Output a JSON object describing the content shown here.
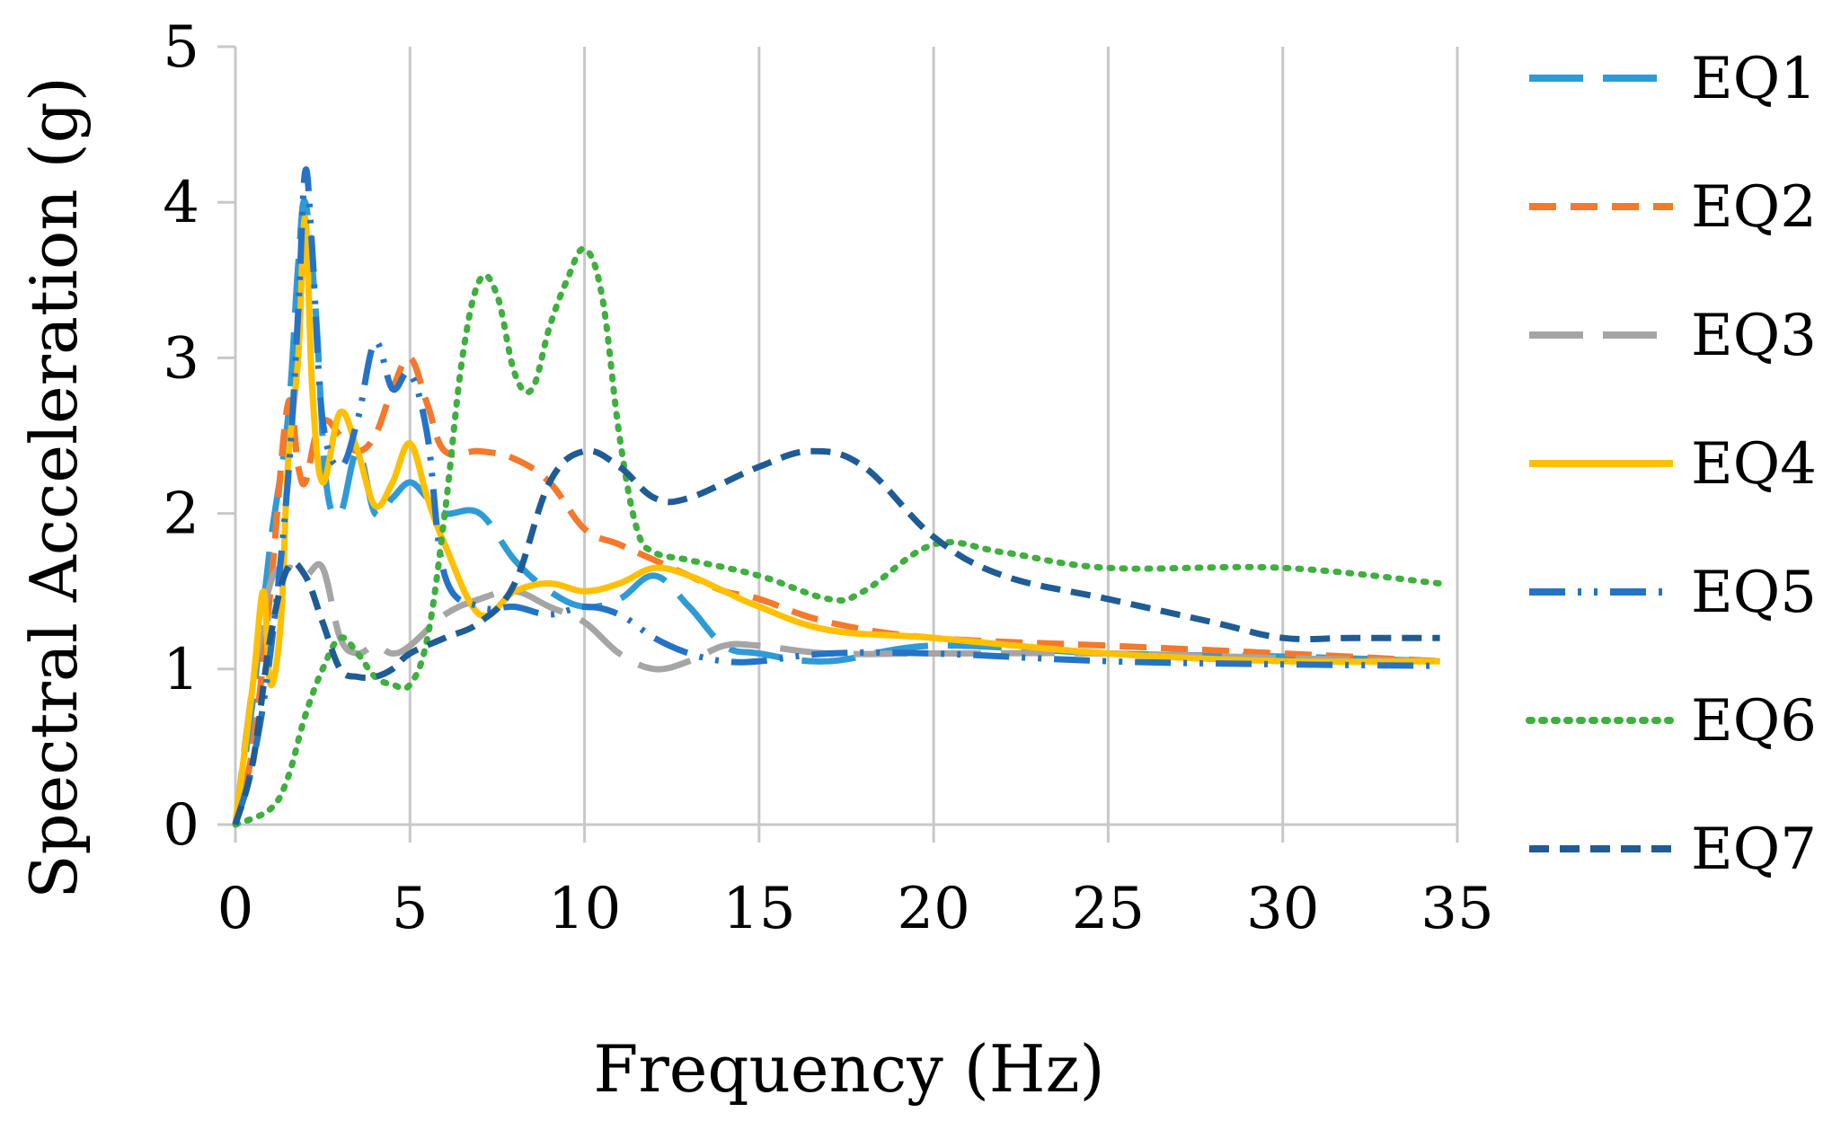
{
  "chart_data": {
    "type": "line",
    "title": "",
    "xlabel": "Frequency (Hz)",
    "ylabel": "Spectral Acceleration (g)",
    "xlim": [
      0,
      35
    ],
    "ylim": [
      0,
      5
    ],
    "xticks": [
      0,
      5,
      10,
      15,
      20,
      25,
      30,
      35
    ],
    "yticks": [
      0,
      1,
      2,
      3,
      4,
      5
    ],
    "xtick_labels": [
      "0",
      "5",
      "10",
      "15",
      "20",
      "25",
      "30",
      "35"
    ],
    "ytick_labels": [
      "0",
      "1",
      "2",
      "3",
      "4",
      "5"
    ],
    "grid": "vertical",
    "legend_position": "right",
    "series": [
      {
        "name": "EQ1",
        "color": "#2E9BD6",
        "dash": "long-dash",
        "x": [
          0,
          0.5,
          1.0,
          1.5,
          1.8,
          2.0,
          2.3,
          2.6,
          3.0,
          3.5,
          4.0,
          4.5,
          5.0,
          5.5,
          6.0,
          7.0,
          8.0,
          9.0,
          10.0,
          11.0,
          12.0,
          13.0,
          14.0,
          15.0,
          17.0,
          20.0,
          25.0,
          30.0,
          34.5
        ],
        "values": [
          0,
          0.8,
          1.8,
          2.6,
          3.6,
          4.0,
          3.3,
          2.2,
          2.0,
          2.4,
          2.0,
          2.1,
          2.2,
          2.1,
          2.0,
          2.0,
          1.7,
          1.5,
          1.4,
          1.45,
          1.6,
          1.4,
          1.15,
          1.1,
          1.05,
          1.15,
          1.1,
          1.08,
          1.05
        ]
      },
      {
        "name": "EQ2",
        "color": "#F4792A",
        "dash": "dash",
        "x": [
          0,
          0.5,
          1.0,
          1.5,
          1.8,
          2.0,
          2.3,
          2.6,
          3.0,
          3.5,
          4.0,
          4.5,
          5.0,
          5.5,
          6.0,
          7.0,
          8.0,
          9.0,
          10.0,
          11.0,
          12.0,
          13.0,
          14.0,
          15.0,
          17.0,
          20.0,
          25.0,
          30.0,
          34.5
        ],
        "values": [
          0,
          0.5,
          1.5,
          2.7,
          2.3,
          2.2,
          2.5,
          2.6,
          2.5,
          2.4,
          2.5,
          2.8,
          3.0,
          2.7,
          2.4,
          2.4,
          2.35,
          2.2,
          1.9,
          1.8,
          1.7,
          1.6,
          1.5,
          1.45,
          1.3,
          1.2,
          1.15,
          1.1,
          1.05
        ]
      },
      {
        "name": "EQ3",
        "color": "#A5A5A5",
        "dash": "long-dash",
        "x": [
          0,
          0.5,
          1.0,
          1.5,
          2.0,
          2.5,
          3.0,
          3.5,
          4.0,
          4.5,
          5.0,
          6.0,
          7.0,
          8.0,
          9.0,
          10.0,
          11.0,
          12.0,
          13.0,
          14.0,
          15.0,
          17.0,
          20.0,
          25.0,
          30.0,
          34.5
        ],
        "values": [
          0,
          0.9,
          1.55,
          1.65,
          1.6,
          1.65,
          1.2,
          1.1,
          1.15,
          1.1,
          1.15,
          1.35,
          1.45,
          1.5,
          1.4,
          1.3,
          1.1,
          1.0,
          1.05,
          1.15,
          1.15,
          1.1,
          1.1,
          1.1,
          1.07,
          1.05
        ]
      },
      {
        "name": "EQ4",
        "color": "#FFC000",
        "dash": "solid",
        "x": [
          0,
          0.5,
          0.8,
          1.0,
          1.3,
          1.5,
          1.8,
          2.0,
          2.2,
          2.5,
          3.0,
          3.5,
          4.0,
          4.5,
          5.0,
          5.5,
          6.0,
          7.0,
          8.0,
          9.0,
          10.0,
          11.0,
          12.0,
          13.0,
          14.0,
          15.0,
          17.0,
          20.0,
          25.0,
          30.0,
          34.5
        ],
        "values": [
          0,
          0.9,
          1.5,
          0.9,
          1.3,
          2.3,
          3.0,
          3.9,
          2.8,
          2.2,
          2.65,
          2.4,
          2.05,
          2.2,
          2.45,
          2.1,
          1.8,
          1.35,
          1.5,
          1.55,
          1.5,
          1.55,
          1.65,
          1.6,
          1.5,
          1.4,
          1.25,
          1.2,
          1.1,
          1.05,
          1.05
        ]
      },
      {
        "name": "EQ5",
        "color": "#2473C7",
        "dash": "dash-dot-dot",
        "x": [
          0,
          0.5,
          1.0,
          1.5,
          1.8,
          2.0,
          2.2,
          2.5,
          3.0,
          3.5,
          4.0,
          4.5,
          5.0,
          5.5,
          6.0,
          7.0,
          8.0,
          9.0,
          10.0,
          11.0,
          12.0,
          13.0,
          14.0,
          15.0,
          17.0,
          20.0,
          25.0,
          30.0,
          34.5
        ],
        "values": [
          0,
          0.4,
          1.1,
          2.2,
          3.3,
          4.2,
          3.7,
          2.6,
          2.3,
          2.6,
          3.1,
          2.8,
          2.9,
          2.5,
          1.6,
          1.4,
          1.4,
          1.35,
          1.4,
          1.35,
          1.2,
          1.1,
          1.05,
          1.05,
          1.1,
          1.1,
          1.05,
          1.03,
          1.02
        ]
      },
      {
        "name": "EQ6",
        "color": "#3FAF3F",
        "dash": "dot",
        "x": [
          0,
          1.0,
          1.5,
          2.0,
          2.5,
          3.0,
          3.5,
          4.0,
          4.5,
          5.0,
          5.5,
          6.0,
          6.5,
          7.0,
          7.5,
          8.0,
          8.5,
          9.0,
          9.5,
          10.0,
          10.5,
          11.0,
          11.5,
          12.0,
          13.0,
          15.0,
          17.0,
          18.0,
          20.0,
          22.0,
          25.0,
          30.0,
          34.5
        ],
        "values": [
          0,
          0.1,
          0.3,
          0.7,
          1.0,
          1.2,
          1.1,
          0.95,
          0.9,
          0.9,
          1.2,
          2.0,
          3.0,
          3.5,
          3.4,
          2.9,
          2.8,
          3.2,
          3.5,
          3.7,
          3.4,
          2.5,
          1.9,
          1.75,
          1.7,
          1.6,
          1.45,
          1.5,
          1.8,
          1.75,
          1.65,
          1.65,
          1.55
        ]
      },
      {
        "name": "EQ7",
        "color": "#1F5C96",
        "dash": "short-dash",
        "x": [
          0,
          0.5,
          1.0,
          1.5,
          2.0,
          2.5,
          3.0,
          3.5,
          4.0,
          4.5,
          5.0,
          6.0,
          7.0,
          8.0,
          9.0,
          10.0,
          11.0,
          12.0,
          13.0,
          15.0,
          16.5,
          18.0,
          20.0,
          22.0,
          25.0,
          28.0,
          30.0,
          32.0,
          34.5
        ],
        "values": [
          0,
          0.4,
          1.2,
          1.65,
          1.6,
          1.3,
          1.0,
          0.95,
          0.95,
          1.0,
          1.1,
          1.2,
          1.3,
          1.55,
          2.2,
          2.4,
          2.3,
          2.1,
          2.1,
          2.3,
          2.4,
          2.3,
          1.85,
          1.6,
          1.45,
          1.3,
          1.2,
          1.2,
          1.2
        ]
      }
    ]
  }
}
